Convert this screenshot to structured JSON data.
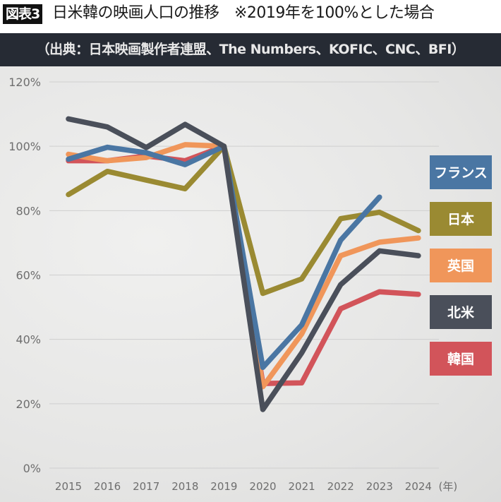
{
  "header": {
    "badge": "図表3",
    "title": "日米韓の映画人口の推移　※2019年を100%とした場合",
    "source": "（出典：日本映画製作者連盟、The Numbers、KOFIC、CNC、BFI）"
  },
  "chart_data": {
    "type": "line",
    "title": "日米韓の映画人口の推移",
    "subtitle": "※2019年を100%とした場合",
    "source": "（出典：日本映画製作者連盟、The Numbers、KOFIC、CNC、BFI）",
    "xlabel": "(年)",
    "ylabel": "",
    "x": [
      "2015",
      "2016",
      "2017",
      "2018",
      "2019",
      "2020",
      "2021",
      "2022",
      "2023",
      "2024"
    ],
    "x_unit_label": "(年)",
    "ylim": [
      0,
      120
    ],
    "yticks": [
      0,
      20,
      40,
      60,
      80,
      100,
      120
    ],
    "ytick_labels": [
      "0%",
      "20%",
      "40%",
      "60%",
      "80%",
      "100%",
      "120%"
    ],
    "grid": true,
    "legend_position": "right",
    "series": [
      {
        "name": "韓国",
        "color": "#d2545a",
        "values": [
          95.5,
          95.5,
          97,
          95.5,
          100,
          26.3,
          26.5,
          49.5,
          54.8,
          54
        ]
      },
      {
        "name": "英国",
        "color": "#f0965a",
        "values": [
          97.5,
          95.5,
          96.5,
          100.5,
          100,
          25.3,
          41.7,
          66,
          70.2,
          71.5
        ]
      },
      {
        "name": "日本",
        "color": "#9a8a32",
        "values": [
          85,
          92.2,
          89.5,
          86.8,
          100,
          54.3,
          58.8,
          77.5,
          79.5,
          73.8
        ]
      },
      {
        "name": "フランス",
        "color": "#4a76a3",
        "values": [
          96,
          99.7,
          98,
          94.3,
          100,
          31.3,
          44.5,
          70.8,
          84.2,
          null
        ]
      },
      {
        "name": "北米",
        "color": "#4a4f5a",
        "values": [
          108.5,
          106,
          99.6,
          106.8,
          100,
          18.2,
          35.8,
          57,
          67.5,
          66
        ]
      }
    ],
    "legend": [
      {
        "name": "フランス",
        "color": "#4a76a3"
      },
      {
        "name": "日本",
        "color": "#9a8a32"
      },
      {
        "name": "英国",
        "color": "#f0965a"
      },
      {
        "name": "北米",
        "color": "#4a4f5a"
      },
      {
        "name": "韓国",
        "color": "#d2545a"
      }
    ]
  }
}
